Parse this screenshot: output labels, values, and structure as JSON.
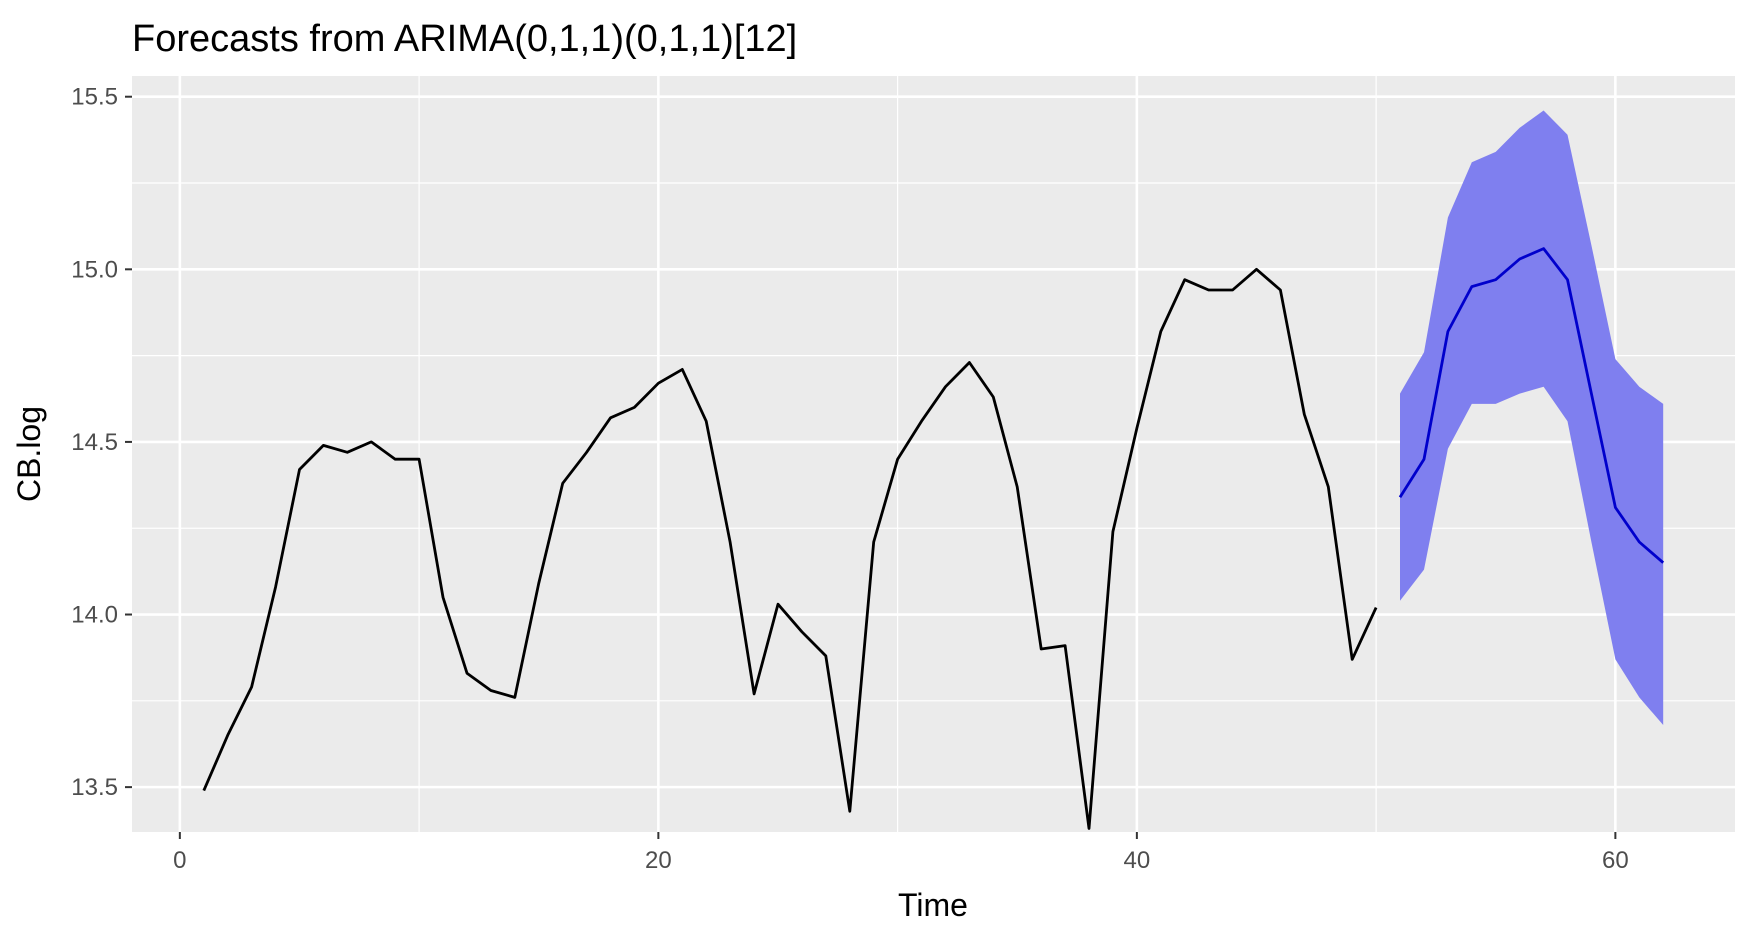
{
  "chart_data": {
    "type": "line",
    "title": "Forecasts from ARIMA(0,1,1)(0,1,1)[12]",
    "xlabel": "Time",
    "ylabel": "CB.log",
    "xlim": [
      -2,
      65
    ],
    "ylim": [
      13.37,
      15.56
    ],
    "x_ticks": [
      0,
      20,
      40,
      60
    ],
    "y_ticks": [
      13.5,
      14.0,
      14.5,
      15.0,
      15.5
    ],
    "x_tick_labels": [
      "0",
      "20",
      "40",
      "60"
    ],
    "y_tick_labels": [
      "13.5",
      "14.0",
      "14.5",
      "15.0",
      "15.5"
    ],
    "grid": true,
    "colors": {
      "panel_background": "#ebebeb",
      "grid": "#ffffff",
      "history_line": "#000000",
      "forecast_line": "#0000cc",
      "interval_fill": "#7f7fef"
    },
    "series": [
      {
        "x": [
          1,
          2,
          3,
          4,
          5,
          6,
          7,
          8,
          9,
          10,
          11,
          12,
          13,
          14,
          15,
          16,
          17,
          18,
          19,
          20,
          21,
          22,
          23,
          24,
          25,
          26,
          27,
          28,
          29,
          30,
          31,
          32,
          33,
          34,
          35,
          36,
          37,
          38,
          39,
          40,
          41,
          42,
          43,
          44,
          45,
          46,
          47,
          48,
          49,
          50
        ],
        "values": [
          13.49,
          13.65,
          13.79,
          14.08,
          14.42,
          14.49,
          14.47,
          14.5,
          14.45,
          14.45,
          14.05,
          13.83,
          13.78,
          13.76,
          14.09,
          14.38,
          14.47,
          14.57,
          14.6,
          14.67,
          14.71,
          14.56,
          14.21,
          13.77,
          14.03,
          13.95,
          13.88,
          13.43,
          14.21,
          14.45,
          14.56,
          14.66,
          14.73,
          14.63,
          14.37,
          13.9,
          13.91,
          13.38,
          14.24,
          14.54,
          14.82,
          14.97,
          14.94,
          14.94,
          15.0,
          14.94,
          14.58,
          14.37,
          13.87,
          14.02
        ]
      },
      {
        "x": [
          51,
          52,
          53,
          54,
          55,
          56,
          57,
          58,
          59,
          60,
          61,
          62
        ],
        "values": [
          14.34,
          14.45,
          14.82,
          14.95,
          14.97,
          15.03,
          15.06,
          14.97,
          14.64,
          14.31,
          14.21,
          14.15
        ],
        "lower": [
          14.04,
          14.13,
          14.48,
          14.61,
          14.61,
          14.64,
          14.66,
          14.56,
          14.21,
          13.87,
          13.76,
          13.68
        ],
        "upper": [
          14.64,
          14.76,
          15.15,
          15.31,
          15.34,
          15.41,
          15.46,
          15.39,
          15.07,
          14.74,
          14.66,
          14.61
        ]
      }
    ]
  }
}
